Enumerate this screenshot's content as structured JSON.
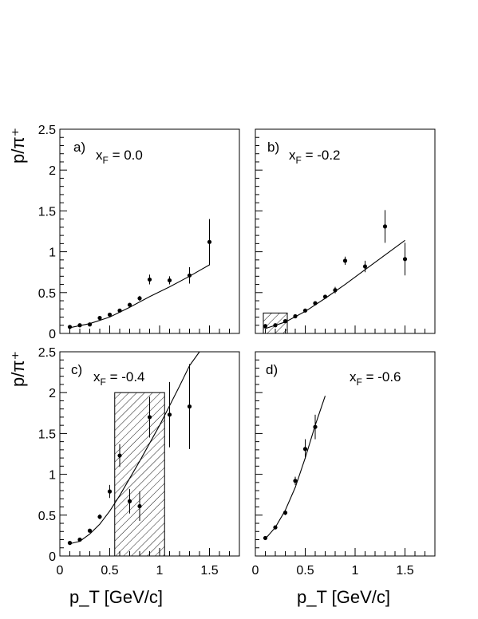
{
  "axis": {
    "ylabel": "p/π⁺",
    "xlabel": "p_T [GeV/c]",
    "yticks": [
      "0",
      "0.5",
      "1",
      "1.5",
      "2",
      "2.5"
    ],
    "xticks": [
      "0",
      "0.5",
      "1",
      "1.5"
    ]
  },
  "chart_data": [
    {
      "type": "scatter",
      "panel_label": "a)",
      "annotation": "x_F = 0.0",
      "xlim": [
        0,
        1.8
      ],
      "ylim": [
        0,
        2.5
      ],
      "points": [
        {
          "x": 0.1,
          "y": 0.08,
          "err": 0.01
        },
        {
          "x": 0.2,
          "y": 0.1,
          "err": 0.01
        },
        {
          "x": 0.3,
          "y": 0.11,
          "err": 0.01
        },
        {
          "x": 0.4,
          "y": 0.19,
          "err": 0.015
        },
        {
          "x": 0.5,
          "y": 0.23,
          "err": 0.015
        },
        {
          "x": 0.6,
          "y": 0.28,
          "err": 0.02
        },
        {
          "x": 0.7,
          "y": 0.35,
          "err": 0.02
        },
        {
          "x": 0.8,
          "y": 0.43,
          "err": 0.03
        },
        {
          "x": 0.9,
          "y": 0.66,
          "err": 0.06
        },
        {
          "x": 1.1,
          "y": 0.65,
          "err": 0.05
        },
        {
          "x": 1.3,
          "y": 0.71,
          "err": 0.1
        },
        {
          "x": 1.5,
          "y": 1.12,
          "err": 0.28
        }
      ],
      "curve": [
        [
          0.1,
          0.07
        ],
        [
          0.3,
          0.12
        ],
        [
          0.5,
          0.2
        ],
        [
          0.7,
          0.32
        ],
        [
          0.9,
          0.45
        ],
        [
          1.1,
          0.57
        ],
        [
          1.3,
          0.7
        ],
        [
          1.5,
          0.84
        ],
        [
          1.5,
          1.12
        ]
      ],
      "band": null
    },
    {
      "type": "scatter",
      "panel_label": "b)",
      "annotation": "x_F = -0.2",
      "xlim": [
        0,
        1.8
      ],
      "ylim": [
        0,
        2.5
      ],
      "points": [
        {
          "x": 0.1,
          "y": 0.09,
          "err": 0.01
        },
        {
          "x": 0.2,
          "y": 0.1,
          "err": 0.01
        },
        {
          "x": 0.3,
          "y": 0.15,
          "err": 0.01
        },
        {
          "x": 0.4,
          "y": 0.21,
          "err": 0.015
        },
        {
          "x": 0.5,
          "y": 0.28,
          "err": 0.015
        },
        {
          "x": 0.6,
          "y": 0.37,
          "err": 0.02
        },
        {
          "x": 0.7,
          "y": 0.45,
          "err": 0.02
        },
        {
          "x": 0.8,
          "y": 0.53,
          "err": 0.04
        },
        {
          "x": 0.9,
          "y": 0.89,
          "err": 0.05
        },
        {
          "x": 1.1,
          "y": 0.82,
          "err": 0.07
        },
        {
          "x": 1.3,
          "y": 1.31,
          "err": 0.2
        },
        {
          "x": 1.5,
          "y": 0.91,
          "err": 0.2
        }
      ],
      "curve": [
        [
          0.1,
          0.06
        ],
        [
          0.3,
          0.14
        ],
        [
          0.5,
          0.27
        ],
        [
          0.7,
          0.43
        ],
        [
          0.9,
          0.6
        ],
        [
          1.1,
          0.78
        ],
        [
          1.3,
          0.96
        ],
        [
          1.5,
          1.14
        ]
      ],
      "band": {
        "x0": 0.08,
        "x1": 0.32,
        "y0": 0,
        "y1": 0.25
      }
    },
    {
      "type": "scatter",
      "panel_label": "c)",
      "annotation": "x_F = -0.4",
      "xlim": [
        0,
        1.8
      ],
      "ylim": [
        0,
        2.5
      ],
      "points": [
        {
          "x": 0.1,
          "y": 0.16,
          "err": 0.01
        },
        {
          "x": 0.2,
          "y": 0.2,
          "err": 0.015
        },
        {
          "x": 0.3,
          "y": 0.31,
          "err": 0.02
        },
        {
          "x": 0.4,
          "y": 0.48,
          "err": 0.03
        },
        {
          "x": 0.5,
          "y": 0.79,
          "err": 0.08
        },
        {
          "x": 0.6,
          "y": 1.23,
          "err": 0.14
        },
        {
          "x": 0.7,
          "y": 0.67,
          "err": 0.15
        },
        {
          "x": 0.8,
          "y": 0.61,
          "err": 0.18
        },
        {
          "x": 0.9,
          "y": 1.7,
          "err": 0.25
        },
        {
          "x": 1.1,
          "y": 1.73,
          "err": 0.4
        },
        {
          "x": 1.3,
          "y": 1.83,
          "err": 0.52
        }
      ],
      "curve": [
        [
          0.1,
          0.15
        ],
        [
          0.2,
          0.18
        ],
        [
          0.3,
          0.27
        ],
        [
          0.4,
          0.39
        ],
        [
          0.5,
          0.55
        ],
        [
          0.6,
          0.74
        ],
        [
          0.7,
          0.95
        ],
        [
          0.8,
          1.16
        ],
        [
          0.9,
          1.38
        ],
        [
          1.0,
          1.6
        ],
        [
          1.1,
          1.84
        ],
        [
          1.2,
          2.08
        ],
        [
          1.3,
          2.33
        ],
        [
          1.4,
          2.5
        ]
      ],
      "band": {
        "x0": 0.55,
        "x1": 1.05,
        "y0": 0,
        "y1": 2.0
      }
    },
    {
      "type": "scatter",
      "panel_label": "d)",
      "annotation": "x_F = -0.6",
      "xlim": [
        0,
        1.8
      ],
      "ylim": [
        0,
        2.5
      ],
      "points": [
        {
          "x": 0.1,
          "y": 0.22,
          "err": 0.015
        },
        {
          "x": 0.2,
          "y": 0.35,
          "err": 0.02
        },
        {
          "x": 0.3,
          "y": 0.53,
          "err": 0.03
        },
        {
          "x": 0.4,
          "y": 0.92,
          "err": 0.05
        },
        {
          "x": 0.5,
          "y": 1.31,
          "err": 0.12
        },
        {
          "x": 0.6,
          "y": 1.58,
          "err": 0.15
        }
      ],
      "curve": [
        [
          0.1,
          0.21
        ],
        [
          0.2,
          0.35
        ],
        [
          0.3,
          0.56
        ],
        [
          0.4,
          0.84
        ],
        [
          0.5,
          1.2
        ],
        [
          0.6,
          1.6
        ],
        [
          0.7,
          1.96
        ]
      ],
      "band": null
    }
  ]
}
